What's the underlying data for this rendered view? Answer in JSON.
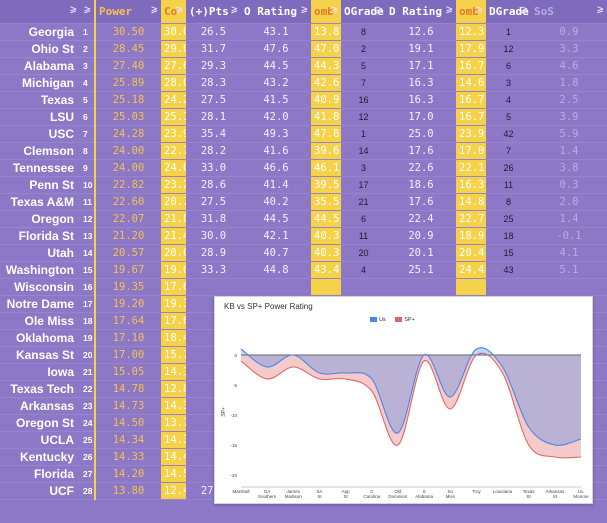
{
  "columns": [
    {
      "key": "team",
      "label": ""
    },
    {
      "key": "rank",
      "label": ""
    },
    {
      "key": "power",
      "label": "Power"
    },
    {
      "key": "co",
      "label": "Co"
    },
    {
      "key": "pts",
      "label": "(+)Pts"
    },
    {
      "key": "orating",
      "label": "O Rating"
    },
    {
      "key": "comb1",
      "label": "omb"
    },
    {
      "key": "ograde",
      "label": "OGrade"
    },
    {
      "key": "drating",
      "label": "D Rating"
    },
    {
      "key": "comb2",
      "label": "omb"
    },
    {
      "key": "dgrade",
      "label": "DGrade"
    },
    {
      "key": "sos",
      "label": "SoS"
    }
  ],
  "rows": [
    {
      "team": "Georgia",
      "rank": "1",
      "power": "30.50",
      "co": "30.0",
      "pts": "26.5",
      "orating": "43.1",
      "comb1": "13.8",
      "ograde": "8",
      "drating": "12.6",
      "comb2": "12.3",
      "dgrade": "1",
      "sos": "0.9"
    },
    {
      "team": "Ohio St",
      "rank": "2",
      "power": "28.45",
      "co": "29.0",
      "pts": "31.7",
      "orating": "47.6",
      "comb1": "47.0",
      "ograde": "2",
      "drating": "19.1",
      "comb2": "17.9",
      "dgrade": "12",
      "sos": "3.3"
    },
    {
      "team": "Alabama",
      "rank": "3",
      "power": "27.40",
      "co": "27.6",
      "pts": "29.3",
      "orating": "44.5",
      "comb1": "44.3",
      "ograde": "5",
      "drating": "17.1",
      "comb2": "16.7",
      "dgrade": "6",
      "sos": "4.6"
    },
    {
      "team": "Michigan",
      "rank": "4",
      "power": "25.89",
      "co": "28.0",
      "pts": "28.3",
      "orating": "43.2",
      "comb1": "42.6",
      "ograde": "7",
      "drating": "16.3",
      "comb2": "14.6",
      "dgrade": "3",
      "sos": "1.8"
    },
    {
      "team": "Texas",
      "rank": "5",
      "power": "25.18",
      "co": "24.2",
      "pts": "27.5",
      "orating": "41.5",
      "comb1": "40.9",
      "ograde": "16",
      "drating": "16.3",
      "comb2": "16.7",
      "dgrade": "4",
      "sos": "2.5"
    },
    {
      "team": "LSU",
      "rank": "6",
      "power": "25.03",
      "co": "25.1",
      "pts": "28.1",
      "orating": "42.0",
      "comb1": "41.8",
      "ograde": "12",
      "drating": "17.0",
      "comb2": "16.7",
      "dgrade": "5",
      "sos": "3.9"
    },
    {
      "team": "USC",
      "rank": "7",
      "power": "24.28",
      "co": "23.9",
      "pts": "35.4",
      "orating": "49.3",
      "comb1": "47.8",
      "ograde": "1",
      "drating": "25.0",
      "comb2": "23.9",
      "dgrade": "42",
      "sos": "5.9"
    },
    {
      "team": "Clemson",
      "rank": "8",
      "power": "24.00",
      "co": "22.7",
      "pts": "28.2",
      "orating": "41.6",
      "comb1": "39.6",
      "ograde": "14",
      "drating": "17.6",
      "comb2": "17.0",
      "dgrade": "7",
      "sos": "1.4"
    },
    {
      "team": "Tennessee",
      "rank": "9",
      "power": "24.00",
      "co": "24.0",
      "pts": "33.0",
      "orating": "46.6",
      "comb1": "46.1",
      "ograde": "3",
      "drating": "22.6",
      "comb2": "22.1",
      "dgrade": "26",
      "sos": "3.8"
    },
    {
      "team": "Penn St",
      "rank": "10",
      "power": "22.82",
      "co": "23.2",
      "pts": "28.6",
      "orating": "41.4",
      "comb1": "39.5",
      "ograde": "17",
      "drating": "18.6",
      "comb2": "16.3",
      "dgrade": "11",
      "sos": "0.3"
    },
    {
      "team": "Texas A&M",
      "rank": "11",
      "power": "22.60",
      "co": "20.7",
      "pts": "27.5",
      "orating": "40.2",
      "comb1": "35.5",
      "ograde": "21",
      "drating": "17.6",
      "comb2": "14.8",
      "dgrade": "8",
      "sos": "2.0"
    },
    {
      "team": "Oregon",
      "rank": "12",
      "power": "22.07",
      "co": "21.8",
      "pts": "31.8",
      "orating": "44.5",
      "comb1": "44.5",
      "ograde": "6",
      "drating": "22.4",
      "comb2": "22.7",
      "dgrade": "25",
      "sos": "1.4"
    },
    {
      "team": "Florida St",
      "rank": "13",
      "power": "21.20",
      "co": "21.4",
      "pts": "30.0",
      "orating": "42.1",
      "comb1": "40.3",
      "ograde": "11",
      "drating": "20.9",
      "comb2": "18.9",
      "dgrade": "18",
      "sos": "-0.1"
    },
    {
      "team": "Utah",
      "rank": "14",
      "power": "20.57",
      "co": "20.0",
      "pts": "28.9",
      "orating": "40.7",
      "comb1": "40.3",
      "ograde": "20",
      "drating": "20.1",
      "comb2": "20.4",
      "dgrade": "15",
      "sos": "4.1"
    },
    {
      "team": "Washington",
      "rank": "15",
      "power": "19.67",
      "co": "19.0",
      "pts": "33.3",
      "orating": "44.8",
      "comb1": "43.4",
      "ograde": "4",
      "drating": "25.1",
      "comb2": "24.4",
      "dgrade": "43",
      "sos": "5.1"
    },
    {
      "team": "Wisconsin",
      "rank": "16",
      "power": "19.35",
      "co": "17.6",
      "pts": "",
      "orating": "",
      "comb1": "",
      "ograde": "",
      "drating": "",
      "comb2": "",
      "dgrade": "",
      "sos": ""
    },
    {
      "team": "Notre Dame",
      "rank": "17",
      "power": "19.20",
      "co": "19.3",
      "pts": "",
      "orating": "",
      "comb1": "",
      "ograde": "",
      "drating": "",
      "comb2": "",
      "dgrade": "",
      "sos": ""
    },
    {
      "team": "Ole Miss",
      "rank": "18",
      "power": "17.64",
      "co": "17.6",
      "pts": "",
      "orating": "",
      "comb1": "",
      "ograde": "",
      "drating": "",
      "comb2": "",
      "dgrade": "",
      "sos": ""
    },
    {
      "team": "Oklahoma",
      "rank": "19",
      "power": "17.10",
      "co": "18.4",
      "pts": "",
      "orating": "",
      "comb1": "",
      "ograde": "",
      "drating": "",
      "comb2": "",
      "dgrade": "",
      "sos": ""
    },
    {
      "team": "Kansas St",
      "rank": "20",
      "power": "17.00",
      "co": "15.7",
      "pts": "",
      "orating": "",
      "comb1": "",
      "ograde": "",
      "drating": "",
      "comb2": "",
      "dgrade": "",
      "sos": ""
    },
    {
      "team": "Iowa",
      "rank": "21",
      "power": "15.05",
      "co": "14.1",
      "pts": "",
      "orating": "",
      "comb1": "",
      "ograde": "",
      "drating": "",
      "comb2": "",
      "dgrade": "",
      "sos": ""
    },
    {
      "team": "Texas Tech",
      "rank": "22",
      "power": "14.78",
      "co": "12.8",
      "pts": "",
      "orating": "",
      "comb1": "",
      "ograde": "",
      "drating": "",
      "comb2": "",
      "dgrade": "",
      "sos": ""
    },
    {
      "team": "Arkansas",
      "rank": "23",
      "power": "14.73",
      "co": "14.3",
      "pts": "",
      "orating": "",
      "comb1": "",
      "ograde": "",
      "drating": "",
      "comb2": "",
      "dgrade": "",
      "sos": ""
    },
    {
      "team": "Oregon St",
      "rank": "24",
      "power": "14.50",
      "co": "13.7",
      "pts": "",
      "orating": "",
      "comb1": "",
      "ograde": "",
      "drating": "",
      "comb2": "",
      "dgrade": "",
      "sos": ""
    },
    {
      "team": "UCLA",
      "rank": "25",
      "power": "14.34",
      "co": "14.3",
      "pts": "",
      "orating": "",
      "comb1": "",
      "ograde": "",
      "drating": "",
      "comb2": "",
      "dgrade": "",
      "sos": ""
    },
    {
      "team": "Kentucky",
      "rank": "26",
      "power": "14.33",
      "co": "14.4",
      "pts": "",
      "orating": "",
      "comb1": "",
      "ograde": "",
      "drating": "",
      "comb2": "",
      "dgrade": "",
      "sos": ""
    },
    {
      "team": "Florida",
      "rank": "27",
      "power": "14.20",
      "co": "14.5",
      "pts": "",
      "orating": "",
      "comb1": "",
      "ograde": "",
      "drating": "",
      "comb2": "",
      "dgrade": "",
      "sos": ""
    },
    {
      "team": "UCF",
      "rank": "28",
      "power": "13.80",
      "co": "12.4",
      "pts": "27.6",
      "orating": "35.9",
      "comb1": "34.6",
      "ograde": "37",
      "drating": "22.1",
      "comb2": "22.2",
      "dgrade": "22",
      "sos": "1.6"
    }
  ],
  "filter_icon": "filter-icon",
  "colors": {
    "bg": "#8C78C6",
    "highlight": "#F6D24A",
    "power_text": "#F6C34F",
    "us": "#4A86E8",
    "sp": "#E06666"
  },
  "chart": {
    "title": "KB vs SP+ Power Rating",
    "legend": [
      {
        "name": "Us",
        "color": "#4A86E8"
      },
      {
        "name": "SP+",
        "color": "#E06666"
      }
    ],
    "ylabel": "SP+"
  },
  "chart_data": {
    "type": "area",
    "title": "KB vs SP+ Power Rating",
    "ylabel": "SP+",
    "categories": [
      "Marshall",
      "GA Southern",
      "James Madison",
      "SA St",
      "App St",
      "C Carolina",
      "Old Dominion",
      "S Alabama",
      "So Miss",
      "Troy",
      "Louisiana",
      "Texas St",
      "Arkansas St",
      "UL Monroe"
    ],
    "yticks": [
      "0",
      "-5",
      "-10",
      "-15",
      "-20"
    ],
    "ylim": [
      -22,
      3
    ],
    "series": [
      {
        "name": "Us",
        "values": [
          1,
          -2,
          0,
          -3,
          -3,
          -4,
          -13,
          0,
          -7,
          1,
          -2,
          -12,
          -15,
          -14
        ]
      },
      {
        "name": "SP+",
        "values": [
          -1,
          -4,
          -2,
          -4,
          -4,
          -6,
          -15,
          -1,
          -9,
          0,
          -3,
          -15,
          -17,
          -17
        ]
      }
    ]
  }
}
